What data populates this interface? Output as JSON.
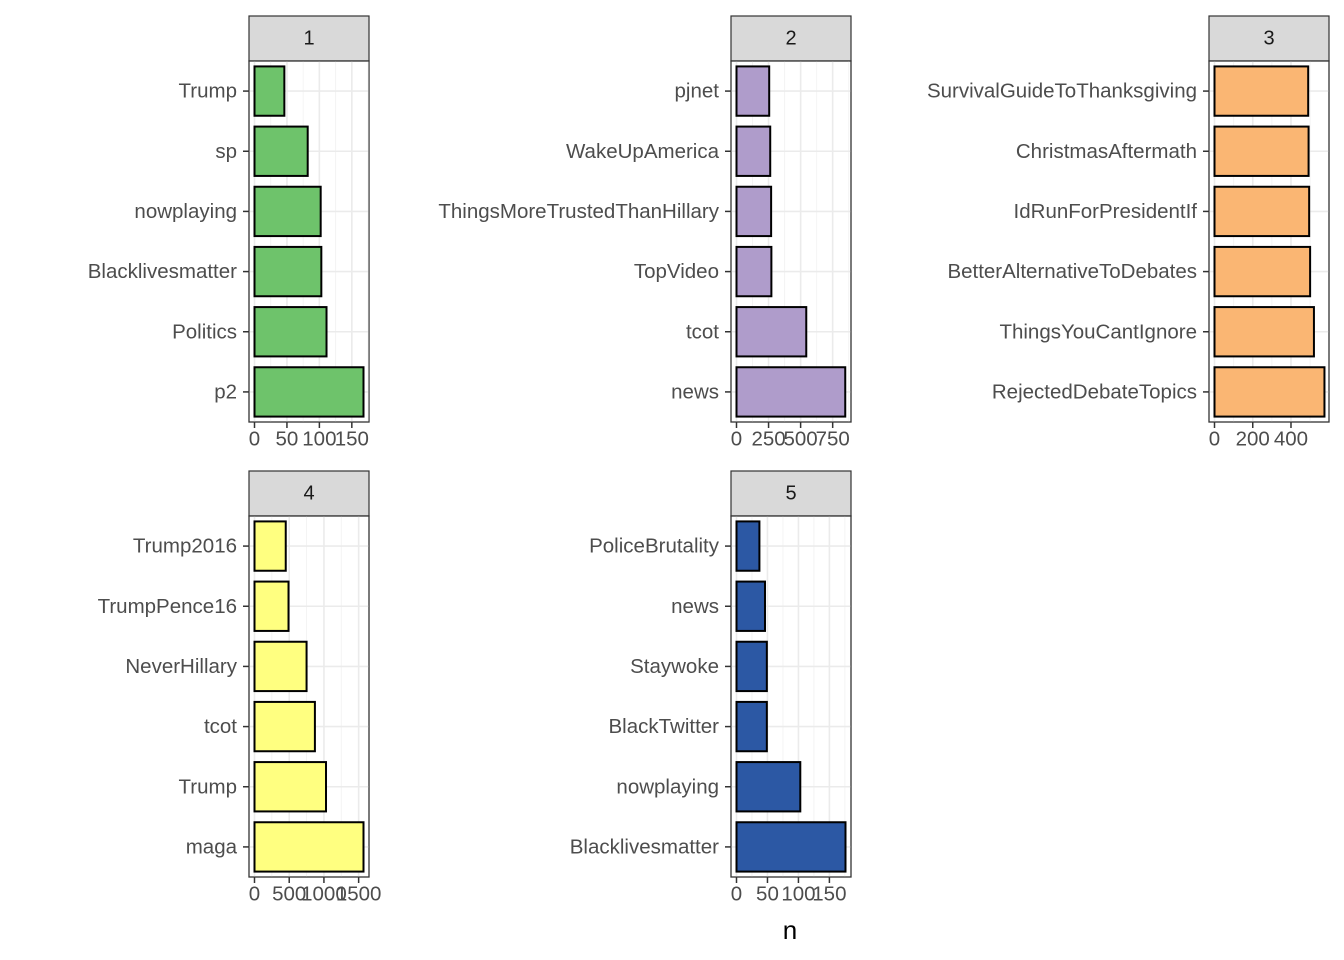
{
  "chart_data": {
    "type": "bar",
    "orientation": "horizontal",
    "facet_layout": "3 columns, 2 rows",
    "xlabel": "n",
    "ylabel": "",
    "grid": true,
    "panels": [
      {
        "strip": "1",
        "color": "#6ec36b",
        "xlim": [
          0,
          168
        ],
        "ticks": [
          0,
          50,
          100,
          150
        ],
        "tick_labels": [
          "0",
          "50",
          "100",
          "150"
        ],
        "categories": [
          "Trump",
          "sp",
          "nowplaying",
          "Blacklivesmatter",
          "Politics",
          "p2"
        ],
        "values": [
          46,
          82,
          102,
          103,
          111,
          168
        ]
      },
      {
        "strip": "2",
        "color": "#af9ccb",
        "xlim": [
          0,
          850
        ],
        "ticks": [
          0,
          250,
          500,
          750
        ],
        "tick_labels": [
          "0",
          "250",
          "500",
          "750"
        ],
        "categories": [
          "pjnet",
          "WakeUpAmerica",
          "ThingsMoreTrustedThanHillary",
          "TopVideo",
          "tcot",
          "news"
        ],
        "values": [
          255,
          263,
          270,
          272,
          544,
          848
        ]
      },
      {
        "strip": "3",
        "color": "#fab673",
        "xlim": [
          0,
          570
        ],
        "ticks": [
          0,
          200,
          400
        ],
        "tick_labels": [
          "0",
          "200",
          "400"
        ],
        "categories": [
          "SurvivalGuideToThanksgiving",
          "ChristmasAftermath",
          "IdRunForPresidentIf",
          "BetterAlternativeToDebates",
          "ThingsYouCantIgnore",
          "RejectedDebateTopics"
        ],
        "values": [
          490,
          492,
          495,
          500,
          520,
          575
        ]
      },
      {
        "strip": "4",
        "color": "#ffff80",
        "xlim": [
          0,
          1570
        ],
        "ticks": [
          0,
          500,
          1000,
          1500
        ],
        "tick_labels": [
          "0",
          "500",
          "1000",
          "1500"
        ],
        "categories": [
          "Trump2016",
          "TrumpPence16",
          "NeverHillary",
          "tcot",
          "Trump",
          "maga"
        ],
        "values": [
          450,
          490,
          750,
          870,
          1030,
          1570
        ]
      },
      {
        "strip": "5",
        "color": "#2c58a4",
        "xlim": [
          0,
          176
        ],
        "ticks": [
          0,
          50,
          100,
          150
        ],
        "tick_labels": [
          "0",
          "50",
          "100",
          "150"
        ],
        "categories": [
          "PoliceBrutality",
          "news",
          "Staywoke",
          "BlackTwitter",
          "nowplaying",
          "Blacklivesmatter"
        ],
        "values": [
          37,
          46,
          49,
          49,
          103,
          176
        ]
      }
    ]
  }
}
